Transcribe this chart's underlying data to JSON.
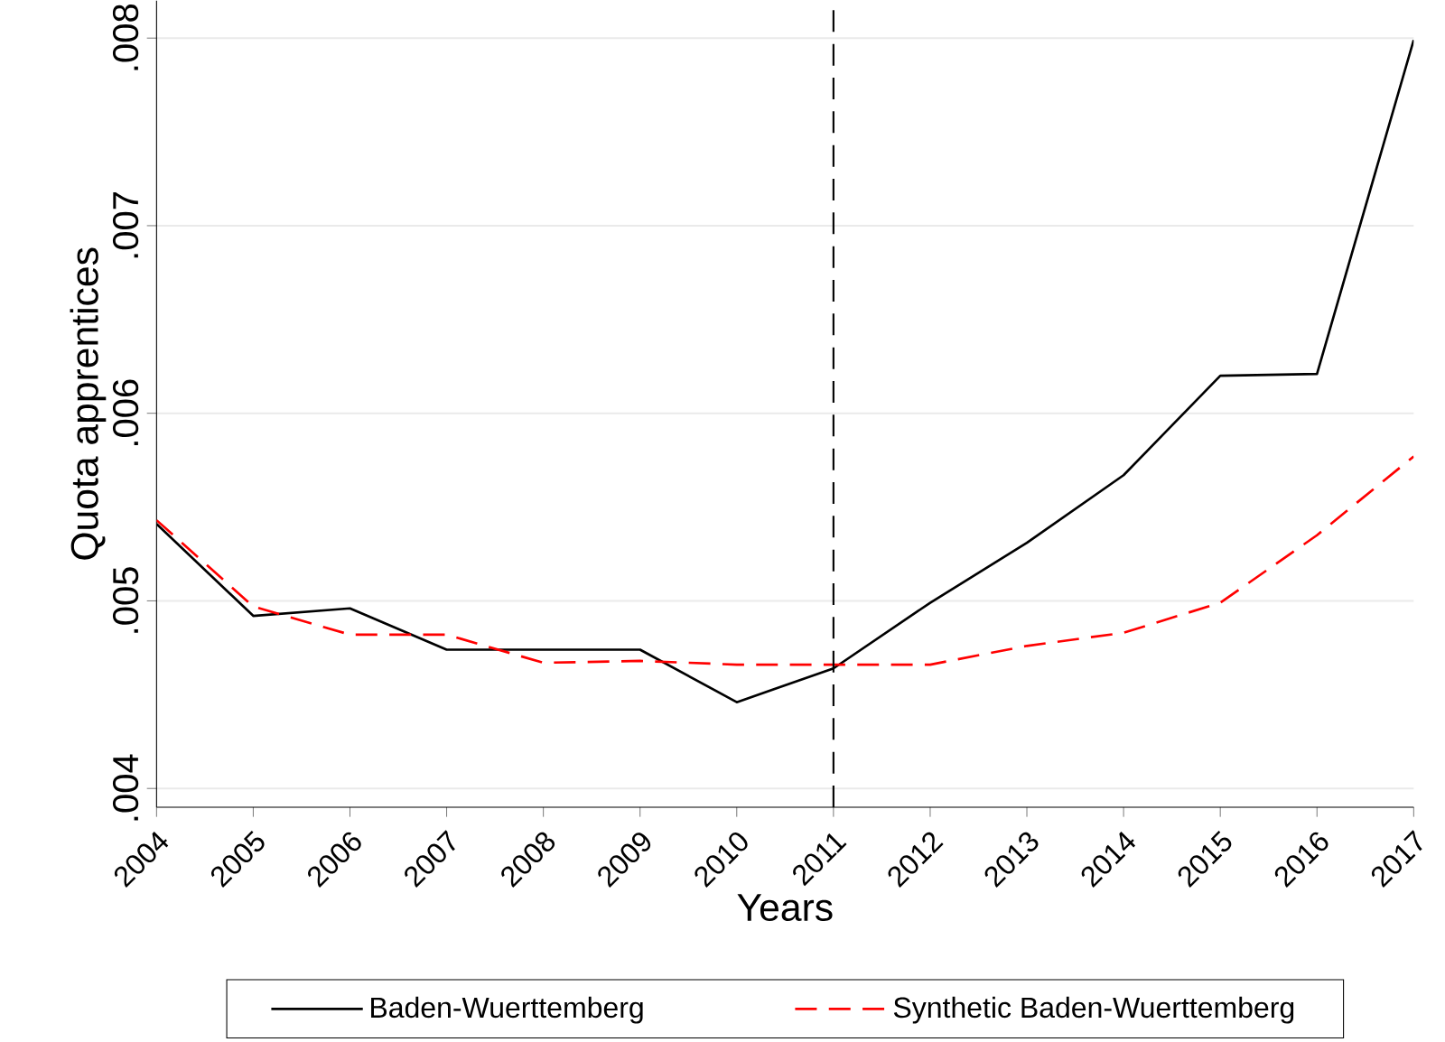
{
  "chart_data": {
    "type": "line",
    "xlabel": "Years",
    "ylabel": "Quota apprentices",
    "x": [
      2004,
      2005,
      2006,
      2007,
      2008,
      2009,
      2010,
      2011,
      2012,
      2013,
      2014,
      2015,
      2016,
      2017
    ],
    "series": [
      {
        "name": "Baden-Wuerttemberg",
        "color": "#000000",
        "line_style": "solid",
        "values": [
          0.00541,
          0.00492,
          0.00496,
          0.00474,
          0.00474,
          0.00474,
          0.00446,
          0.00464,
          0.00499,
          0.00531,
          0.00567,
          0.0062,
          0.00621,
          0.00799
        ]
      },
      {
        "name": "Synthetic Baden-Wuerttemberg",
        "color": "#ff0000",
        "line_style": "dashed",
        "values": [
          0.00543,
          0.00497,
          0.00482,
          0.00482,
          0.00467,
          0.00468,
          0.00466,
          0.00466,
          0.00466,
          0.00476,
          0.00483,
          0.00499,
          0.00535,
          0.00577
        ]
      }
    ],
    "xlim": [
      2004,
      2017
    ],
    "ylim": [
      0.0039,
      0.0082
    ],
    "xticks": [
      2004,
      2005,
      2006,
      2007,
      2008,
      2009,
      2010,
      2011,
      2012,
      2013,
      2014,
      2015,
      2016,
      2017
    ],
    "yticks": [
      {
        "value": 0.004,
        "label": ".004"
      },
      {
        "value": 0.005,
        "label": ".005"
      },
      {
        "value": 0.006,
        "label": ".006"
      },
      {
        "value": 0.007,
        "label": ".007"
      },
      {
        "value": 0.008,
        "label": ".008"
      }
    ],
    "ref_lines": [
      {
        "axis": "x",
        "value": 2011,
        "color": "#000000",
        "line_style": "dashed"
      }
    ],
    "grid": "y",
    "legend": "bottom"
  }
}
